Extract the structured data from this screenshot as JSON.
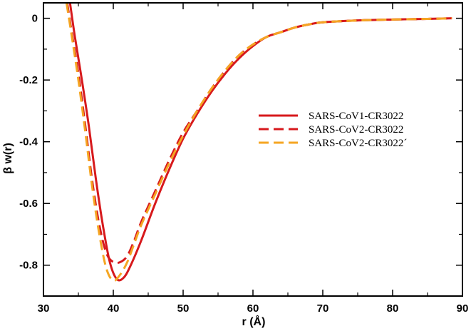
{
  "chart_data": {
    "type": "line",
    "xlabel": "r (Å)",
    "ylabel": "β w(r)",
    "xlim": [
      30,
      90
    ],
    "ylim": [
      -0.9,
      0.05
    ],
    "x_ticks": [
      30,
      40,
      50,
      60,
      70,
      80,
      90
    ],
    "y_ticks": [
      0,
      -0.2,
      -0.4,
      -0.6,
      -0.8
    ],
    "y_tick_labels": [
      "0",
      "-0.2",
      "-0.4",
      "-0.6",
      "-0.8"
    ],
    "grid": false,
    "legend_position": "right-middle",
    "series": [
      {
        "name": "SARS-CoV1-CR3022",
        "color": "#d7191c",
        "dash": "solid",
        "x": [
          33.8,
          34.5,
          35.5,
          36.5,
          37.5,
          38.5,
          39.5,
          40.5,
          41.5,
          42.5,
          44,
          46,
          48,
          50,
          52,
          54,
          56,
          58,
          60,
          62,
          64,
          66,
          68,
          70,
          75,
          80,
          85,
          88.5
        ],
        "y": [
          0.05,
          -0.06,
          -0.2,
          -0.35,
          -0.52,
          -0.67,
          -0.79,
          -0.845,
          -0.84,
          -0.8,
          -0.72,
          -0.6,
          -0.49,
          -0.39,
          -0.31,
          -0.24,
          -0.18,
          -0.13,
          -0.09,
          -0.06,
          -0.045,
          -0.03,
          -0.02,
          -0.013,
          -0.007,
          -0.004,
          -0.002,
          0.0
        ]
      },
      {
        "name": "SARS-CoV2-CR3022",
        "color": "#d7191c",
        "dash": "dashed",
        "x": [
          33.4,
          34,
          35,
          36,
          37,
          38,
          39,
          40,
          41,
          42,
          43,
          44,
          46,
          48,
          50,
          52,
          54,
          56,
          58,
          60,
          62,
          64,
          66,
          68,
          70,
          75,
          80,
          85,
          88.5
        ],
        "y": [
          0.05,
          -0.04,
          -0.18,
          -0.35,
          -0.53,
          -0.67,
          -0.76,
          -0.79,
          -0.79,
          -0.77,
          -0.72,
          -0.66,
          -0.56,
          -0.46,
          -0.37,
          -0.3,
          -0.23,
          -0.17,
          -0.12,
          -0.085,
          -0.06,
          -0.045,
          -0.03,
          -0.02,
          -0.013,
          -0.007,
          -0.004,
          -0.002,
          0.0
        ]
      },
      {
        "name": "SARS-CoV2-CR3022´",
        "color": "#f5a623",
        "dash": "dashed",
        "x": [
          33.3,
          34,
          35,
          36,
          37,
          38,
          39,
          40,
          41,
          42,
          43,
          44,
          46,
          48,
          50,
          52,
          54,
          56,
          58,
          60,
          62,
          64,
          66,
          68,
          70,
          75,
          80,
          85,
          88.5
        ],
        "y": [
          0.05,
          -0.05,
          -0.2,
          -0.37,
          -0.55,
          -0.7,
          -0.81,
          -0.85,
          -0.83,
          -0.79,
          -0.73,
          -0.67,
          -0.57,
          -0.47,
          -0.38,
          -0.3,
          -0.23,
          -0.17,
          -0.12,
          -0.085,
          -0.06,
          -0.045,
          -0.03,
          -0.02,
          -0.013,
          -0.007,
          -0.004,
          -0.002,
          0.0
        ]
      }
    ]
  }
}
